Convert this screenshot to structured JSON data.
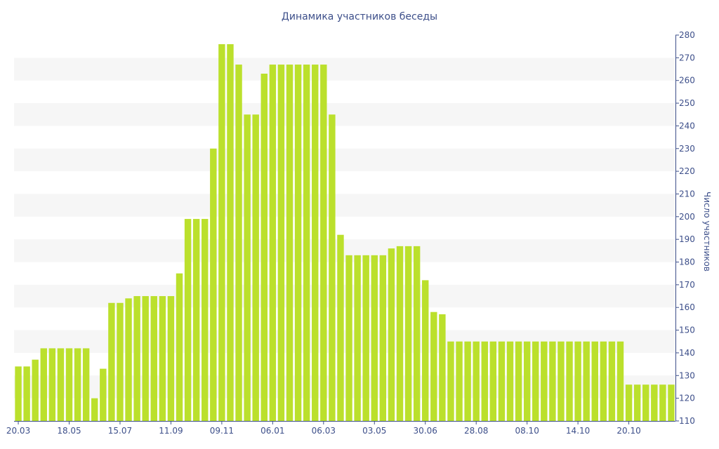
{
  "chart_data": {
    "type": "bar",
    "title": "Динамика участников беседы",
    "xlabel": "",
    "ylabel": "Число участников",
    "ylim": [
      110,
      280
    ],
    "y_ticks": [
      110,
      120,
      130,
      140,
      150,
      160,
      170,
      180,
      190,
      200,
      210,
      220,
      230,
      240,
      250,
      260,
      270,
      280
    ],
    "y_axis_position": "right",
    "x_tick_labels": [
      {
        "label": "20.03",
        "index": 0
      },
      {
        "label": "18.05",
        "index": 6
      },
      {
        "label": "15.07",
        "index": 12
      },
      {
        "label": "11.09",
        "index": 18
      },
      {
        "label": "09.11",
        "index": 24
      },
      {
        "label": "06.01",
        "index": 30
      },
      {
        "label": "06.03",
        "index": 36
      },
      {
        "label": "03.05",
        "index": 42
      },
      {
        "label": "30.06",
        "index": 48
      },
      {
        "label": "28.08",
        "index": 54
      },
      {
        "label": "08.10",
        "index": 60
      },
      {
        "label": "14.10",
        "index": 66
      },
      {
        "label": "20.10",
        "index": 72
      }
    ],
    "values": [
      134,
      134,
      137,
      142,
      142,
      142,
      142,
      142,
      142,
      120,
      133,
      162,
      162,
      164,
      165,
      165,
      165,
      165,
      165,
      175,
      199,
      199,
      199,
      230,
      276,
      276,
      267,
      245,
      245,
      263,
      267,
      267,
      267,
      267,
      267,
      267,
      267,
      245,
      192,
      183,
      183,
      183,
      183,
      183,
      186,
      187,
      187,
      187,
      172,
      158,
      157,
      145,
      145,
      145,
      145,
      145,
      145,
      145,
      145,
      145,
      145,
      145,
      145,
      145,
      145,
      145,
      145,
      145,
      145,
      145,
      145,
      145,
      126,
      126,
      126,
      126,
      126,
      126
    ],
    "bar_color": "#bbe02c",
    "band_color": "#f6f6f6",
    "axis_color": "#3d4f8a",
    "grid": "alternating horizontal bands"
  }
}
